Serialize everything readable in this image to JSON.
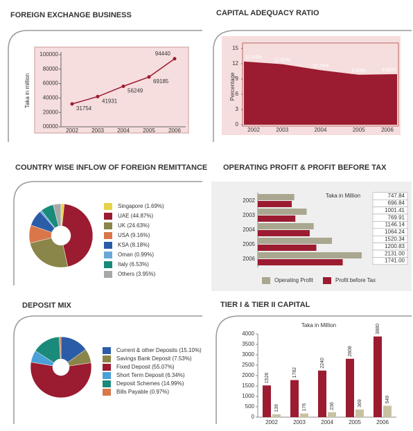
{
  "chart_data": [
    {
      "type": "line",
      "title": "FOREIGN EXCHANGE BUSINESS",
      "y_label": "Taka in million",
      "categories": [
        "2002",
        "2003",
        "2004",
        "2005",
        "2006"
      ],
      "values": [
        31754,
        41931,
        56249,
        69185,
        94440
      ],
      "color": "#9b1b30",
      "ylim": [
        0,
        100000
      ],
      "yticks": [
        {
          "value": 0,
          "label": "00000"
        },
        20000,
        40000,
        60000,
        80000,
        100000
      ]
    },
    {
      "type": "area",
      "title": "CAPITAL ADEQUACY RATIO",
      "y_label": "Percentage",
      "categories": [
        "2002",
        "2003",
        "2004",
        "2005",
        "2006"
      ],
      "values": [
        12.44,
        11.92,
        10.74,
        9.83,
        9.95
      ],
      "value_labels": [
        "12.44%",
        "11.92%",
        "10.74%",
        "9.83%",
        "9.95%"
      ],
      "color": "#9b1b30",
      "ylim": [
        0,
        15
      ],
      "yticks": [
        0,
        3,
        6,
        9,
        12,
        15
      ]
    },
    {
      "type": "pie",
      "title": "COUNTRY WISE INFLOW OF FOREIGN REMITTANCE",
      "categories": [
        "Singapore (1.69%)",
        "UAE (44.87%)",
        "UK (24.63%)",
        "USA (9.16%)",
        "KSA (8.18%)",
        "Oman (0.99%)",
        "Italy (6.53%)",
        "Others (3.95%)"
      ],
      "values": [
        1.69,
        44.87,
        24.63,
        9.16,
        8.18,
        0.99,
        6.53,
        3.95
      ],
      "colors": [
        "#e6d24a",
        "#9b1b30",
        "#8a8548",
        "#d9774a",
        "#2a5ca8",
        "#6aa8d8",
        "#1a8a7a",
        "#a8a8a8"
      ]
    },
    {
      "type": "hbar",
      "title": "OPERATING PROFIT & PROFIT BEFORE TAX",
      "annotation": "Taka in Million",
      "categories": [
        "2002",
        "2003",
        "2004",
        "2005",
        "2006"
      ],
      "series": [
        {
          "name": "Operating Profit",
          "color": "#a9a78f",
          "values": [
            747.84,
            1001.41,
            1146.14,
            1520.34,
            2131.0
          ],
          "value_labels": [
            "747.84",
            "1001.41",
            "1146.14",
            "1520.34",
            "2131.00"
          ]
        },
        {
          "name": "Profit before Tax",
          "color": "#9b1b30",
          "values": [
            696.84,
            769.91,
            1064.24,
            1200.83,
            1741.0
          ],
          "value_labels": [
            "696.84",
            "769.91",
            "1064.24",
            "1200.83",
            "1741.00"
          ]
        }
      ]
    },
    {
      "type": "pie",
      "title": "DEPOSIT MIX",
      "categories": [
        "Current & other Deposits (15.10%)",
        "Savings Bank Deposit (7.53%)",
        "Fixed Deposit (55.07%)",
        "Short Term Deposit (6.34%)",
        "Deposit Schemes (14.99%)",
        "Bills Payable (0.97%)"
      ],
      "values": [
        15.1,
        7.53,
        55.07,
        6.34,
        14.99,
        0.97
      ],
      "colors": [
        "#2a5ca8",
        "#8a8548",
        "#9b1b30",
        "#4aa0d8",
        "#1a8a7a",
        "#d9774a"
      ]
    },
    {
      "type": "vbar",
      "title": "TIER I & TIER II CAPITAL",
      "annotation": "Taka in Million",
      "categories": [
        "2002",
        "2003",
        "2004",
        "2005",
        "2006"
      ],
      "series": [
        {
          "color": "#9b1b30",
          "values": [
            1526,
            1782,
            2240,
            2808,
            3880
          ]
        },
        {
          "color": "#c9c2a2",
          "values": [
            139,
            176,
            236,
            369,
            549
          ]
        }
      ],
      "ylim": [
        0,
        4000
      ],
      "yticks": [
        0,
        500,
        1000,
        1500,
        2000,
        2500,
        3000,
        3500,
        4000
      ]
    }
  ]
}
